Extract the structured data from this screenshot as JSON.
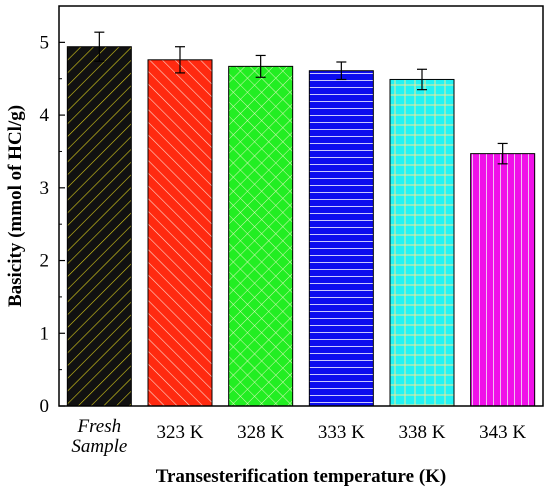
{
  "chart_data": {
    "type": "bar",
    "title": "",
    "xlabel": "Transesterification temperature (K)",
    "ylabel": "Basicity (mmol of HCl/g)",
    "ylim": [
      0,
      5.5
    ],
    "yticks": [
      "0",
      "1",
      "2",
      "3",
      "4",
      "5"
    ],
    "grid": false,
    "categories": [
      {
        "lines": [
          "Fresh",
          "Sample"
        ],
        "italic": true
      },
      {
        "lines": [
          "323 K"
        ],
        "italic": false
      },
      {
        "lines": [
          "328 K"
        ],
        "italic": false
      },
      {
        "lines": [
          "333 K"
        ],
        "italic": false
      },
      {
        "lines": [
          "338 K"
        ],
        "italic": false
      },
      {
        "lines": [
          "343 K"
        ],
        "italic": false
      }
    ],
    "values": [
      4.94,
      4.76,
      4.67,
      4.61,
      4.49,
      3.47
    ],
    "errors": [
      0.2,
      0.18,
      0.15,
      0.12,
      0.14,
      0.14
    ],
    "bars": [
      {
        "fill": "#111111",
        "pattern": "diag-right",
        "pattern_color": "#d8cc1c"
      },
      {
        "fill": "#ff2a10",
        "pattern": "diag-left",
        "pattern_color": "#ffd8cc"
      },
      {
        "fill": "#22ee22",
        "pattern": "crosshatch",
        "pattern_color": "#d8f8b8"
      },
      {
        "fill": "#0c0cee",
        "pattern": "horizontal",
        "pattern_color": "#c8c8ff"
      },
      {
        "fill": "#22f4f4",
        "pattern": "grid",
        "pattern_color": "#f0e69a"
      },
      {
        "fill": "#f010e8",
        "pattern": "vertical",
        "pattern_color": "#f0c0f0"
      }
    ]
  }
}
